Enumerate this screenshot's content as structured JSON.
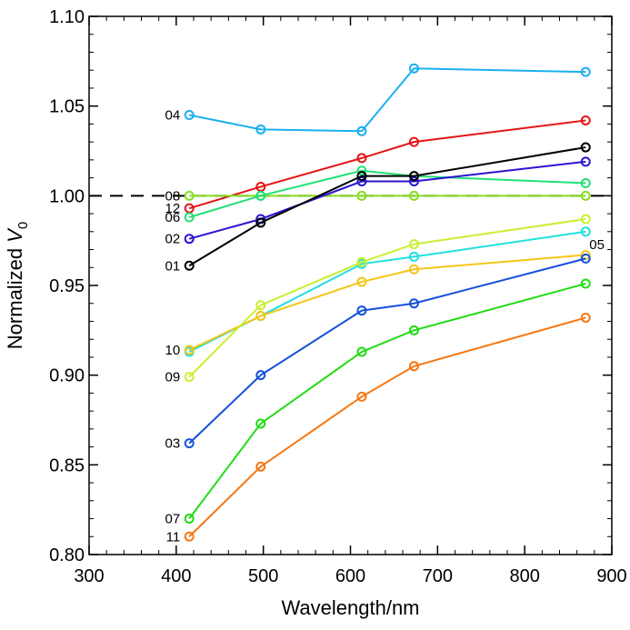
{
  "chart_data": {
    "type": "line",
    "xlabel": "Wavelength/nm",
    "ylabel_main": "Normalized ",
    "ylabel_var": "V",
    "ylabel_sub": "0",
    "xlim": [
      300,
      900
    ],
    "ylim": [
      0.8,
      1.1
    ],
    "xticks": [
      300,
      400,
      500,
      600,
      700,
      800,
      900
    ],
    "yticks": [
      0.8,
      0.85,
      0.9,
      0.95,
      1.0,
      1.05,
      1.1
    ],
    "xtick_labels": [
      "300",
      "400",
      "500",
      "600",
      "700",
      "800",
      "900"
    ],
    "ytick_labels": [
      "0.80",
      "0.85",
      "0.90",
      "0.95",
      "1.00",
      "1.05",
      "1.10"
    ],
    "reference_line": 1.0,
    "grid": false,
    "x": [
      415,
      497,
      613,
      673,
      870
    ],
    "series": [
      {
        "name": "04",
        "color": "#1ab0f0",
        "values": [
          1.045,
          1.037,
          1.036,
          1.071,
          1.069
        ],
        "label_side": "left"
      },
      {
        "name": "12",
        "color": "#e51414",
        "values": [
          0.993,
          1.005,
          1.021,
          1.03,
          1.042
        ],
        "label_side": "left"
      },
      {
        "name": "08",
        "color": "#88dd22",
        "values": [
          1.0,
          1.0,
          1.0,
          1.0,
          1.0
        ],
        "label_side": "left"
      },
      {
        "name": "06",
        "color": "#22e077",
        "values": [
          0.988,
          1.0,
          1.014,
          1.011,
          1.007
        ],
        "label_side": "left"
      },
      {
        "name": "02",
        "color": "#2a14d2",
        "values": [
          0.976,
          0.987,
          1.008,
          1.008,
          1.019
        ],
        "label_side": "left"
      },
      {
        "name": "01",
        "color": "#000000",
        "values": [
          0.961,
          0.985,
          1.011,
          1.011,
          1.027
        ],
        "label_side": "left"
      },
      {
        "name": "05",
        "color": "#22e0e0",
        "values": [
          0.913,
          0.933,
          0.962,
          0.966,
          0.98
        ],
        "label_side": "right"
      },
      {
        "name": "10",
        "color": "#f5c518",
        "values": [
          0.914,
          0.933,
          0.952,
          0.959,
          0.967
        ],
        "label_side": "left"
      },
      {
        "name": "09",
        "color": "#c8f032",
        "values": [
          0.899,
          0.939,
          0.963,
          0.973,
          0.987
        ],
        "label_side": "left"
      },
      {
        "name": "03",
        "color": "#1450dc",
        "values": [
          0.862,
          0.9,
          0.936,
          0.94,
          0.965
        ],
        "label_side": "left"
      },
      {
        "name": "07",
        "color": "#22dc14",
        "values": [
          0.82,
          0.873,
          0.913,
          0.925,
          0.951
        ],
        "label_side": "left"
      },
      {
        "name": "11",
        "color": "#f57814",
        "values": [
          0.81,
          0.849,
          0.888,
          0.905,
          0.932
        ],
        "label_side": "left"
      }
    ]
  }
}
